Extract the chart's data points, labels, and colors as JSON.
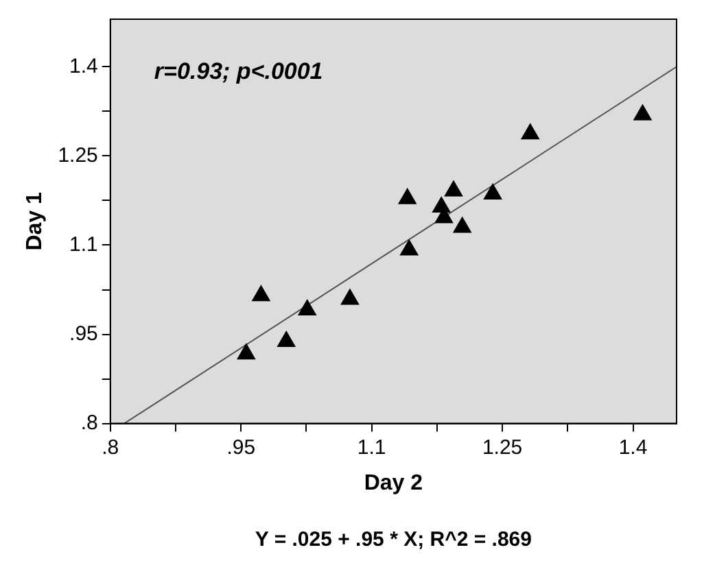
{
  "chart_data": {
    "type": "scatter",
    "xlabel": "Day 2",
    "ylabel": "Day 1",
    "annotations": [
      "r=0.93; p<.0001",
      "Y = .025 + .95 * X; R^2 = .869"
    ],
    "series": [
      {
        "color": "#000000",
        "marker": "triangle",
        "x": [
          0.956,
          0.973,
          1.002,
          1.026,
          1.075,
          1.141,
          1.143,
          1.18,
          1.183,
          1.194,
          1.204,
          1.239,
          1.282,
          1.411
        ],
        "values": [
          0.917,
          1.015,
          0.938,
          0.991,
          1.009,
          1.178,
          1.092,
          1.164,
          1.146,
          1.191,
          1.13,
          1.186,
          1.287,
          1.319
        ]
      },
      {
        "type": "line",
        "color": "#555555",
        "marker": "none",
        "x": [
          0.816,
          1.45
        ],
        "values": [
          0.8,
          1.4
        ]
      }
    ],
    "xlim": [
      0.8,
      1.45
    ],
    "ylim": [
      0.8,
      1.48
    ],
    "xticks": [
      {
        "value": 0.8,
        "label": ".8"
      },
      {
        "value": 0.875,
        "label": null
      },
      {
        "value": 0.95,
        "label": ".95"
      },
      {
        "value": 1.025,
        "label": null
      },
      1.1,
      {
        "value": 1.175,
        "label": null
      },
      1.25,
      {
        "value": 1.325,
        "label": null
      },
      1.4
    ],
    "yticks": [
      {
        "value": 0.8,
        "label": ".8"
      },
      {
        "value": 0.875,
        "label": null
      },
      {
        "value": 0.95,
        "label": ".95"
      },
      {
        "value": 1.025,
        "label": null
      },
      1.1,
      {
        "value": 1.175,
        "label": null
      },
      1.25,
      {
        "value": 1.325,
        "label": null
      },
      1.4
    ],
    "grid": false,
    "legend": false,
    "line_style": "solid"
  }
}
